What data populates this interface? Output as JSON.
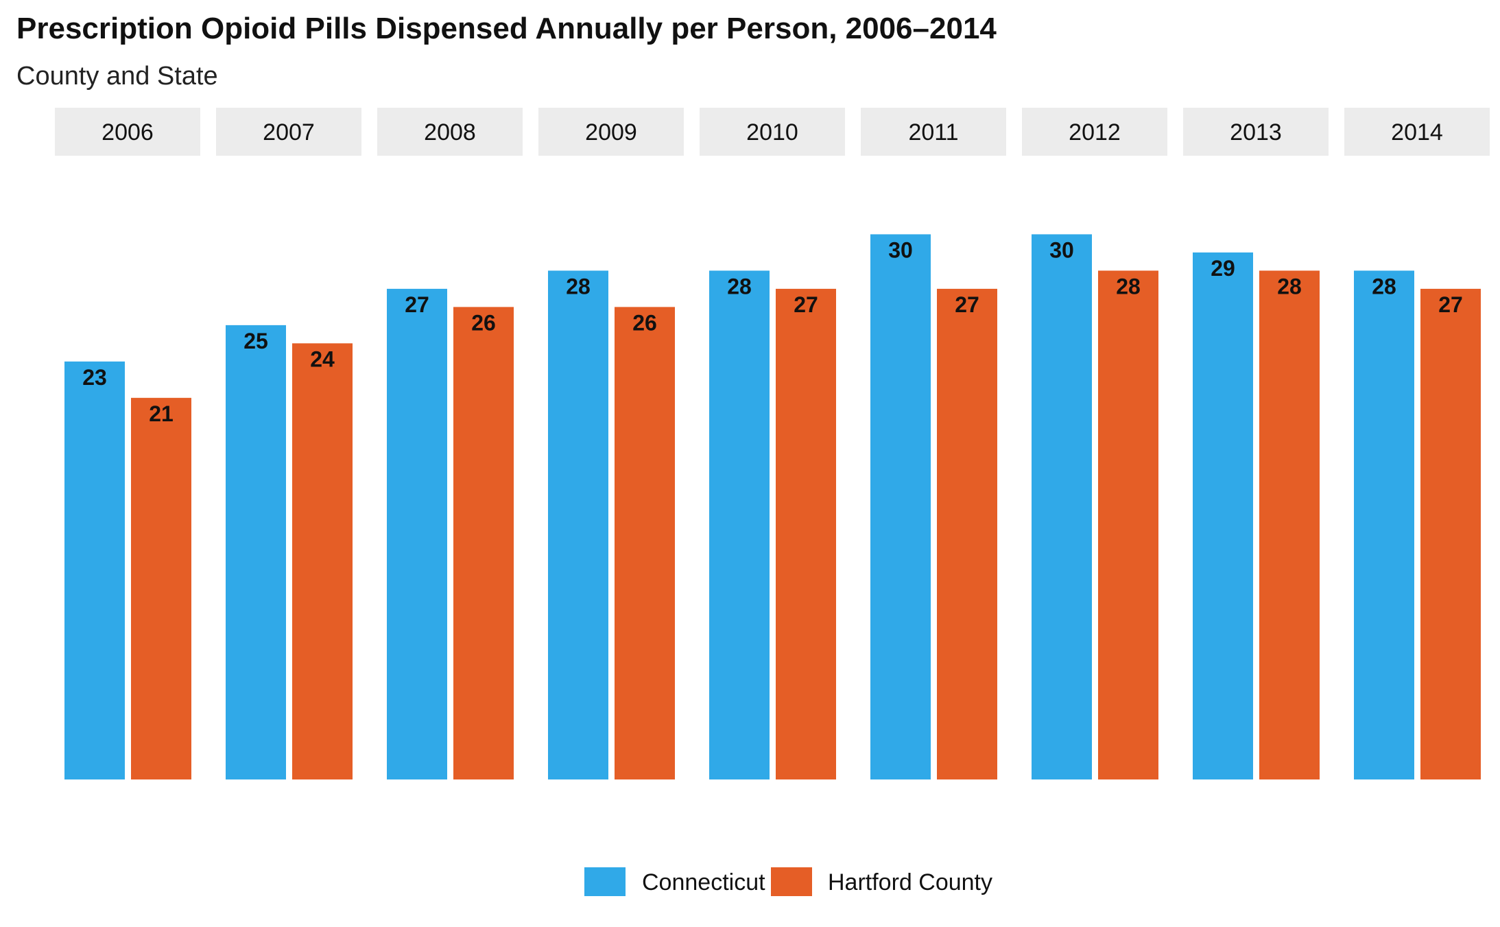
{
  "chart_data": {
    "type": "bar",
    "title": "Prescription Opioid Pills Dispensed Annually per Person, 2006–2014",
    "subtitle": "County and State",
    "categories": [
      "2006",
      "2007",
      "2008",
      "2009",
      "2010",
      "2011",
      "2012",
      "2013",
      "2014"
    ],
    "series": [
      {
        "name": "Connecticut",
        "color": "#30a9e8",
        "values": [
          23,
          25,
          27,
          28,
          28,
          30,
          30,
          29,
          28
        ],
        "labels": [
          "23",
          "25",
          "27",
          "28",
          "28",
          "30",
          "30",
          "29",
          "28"
        ]
      },
      {
        "name": "Hartford County",
        "color": "#e55e26",
        "values": [
          21,
          24,
          26,
          26,
          27,
          27,
          28,
          28,
          27
        ],
        "labels": [
          "21",
          "24",
          "26",
          "26",
          "27",
          "27",
          "28",
          "28",
          "27"
        ]
      }
    ],
    "ylim": [
      0,
      33
    ],
    "grid": false,
    "legend_position": "bottom-center",
    "xlabel": "",
    "ylabel": ""
  }
}
